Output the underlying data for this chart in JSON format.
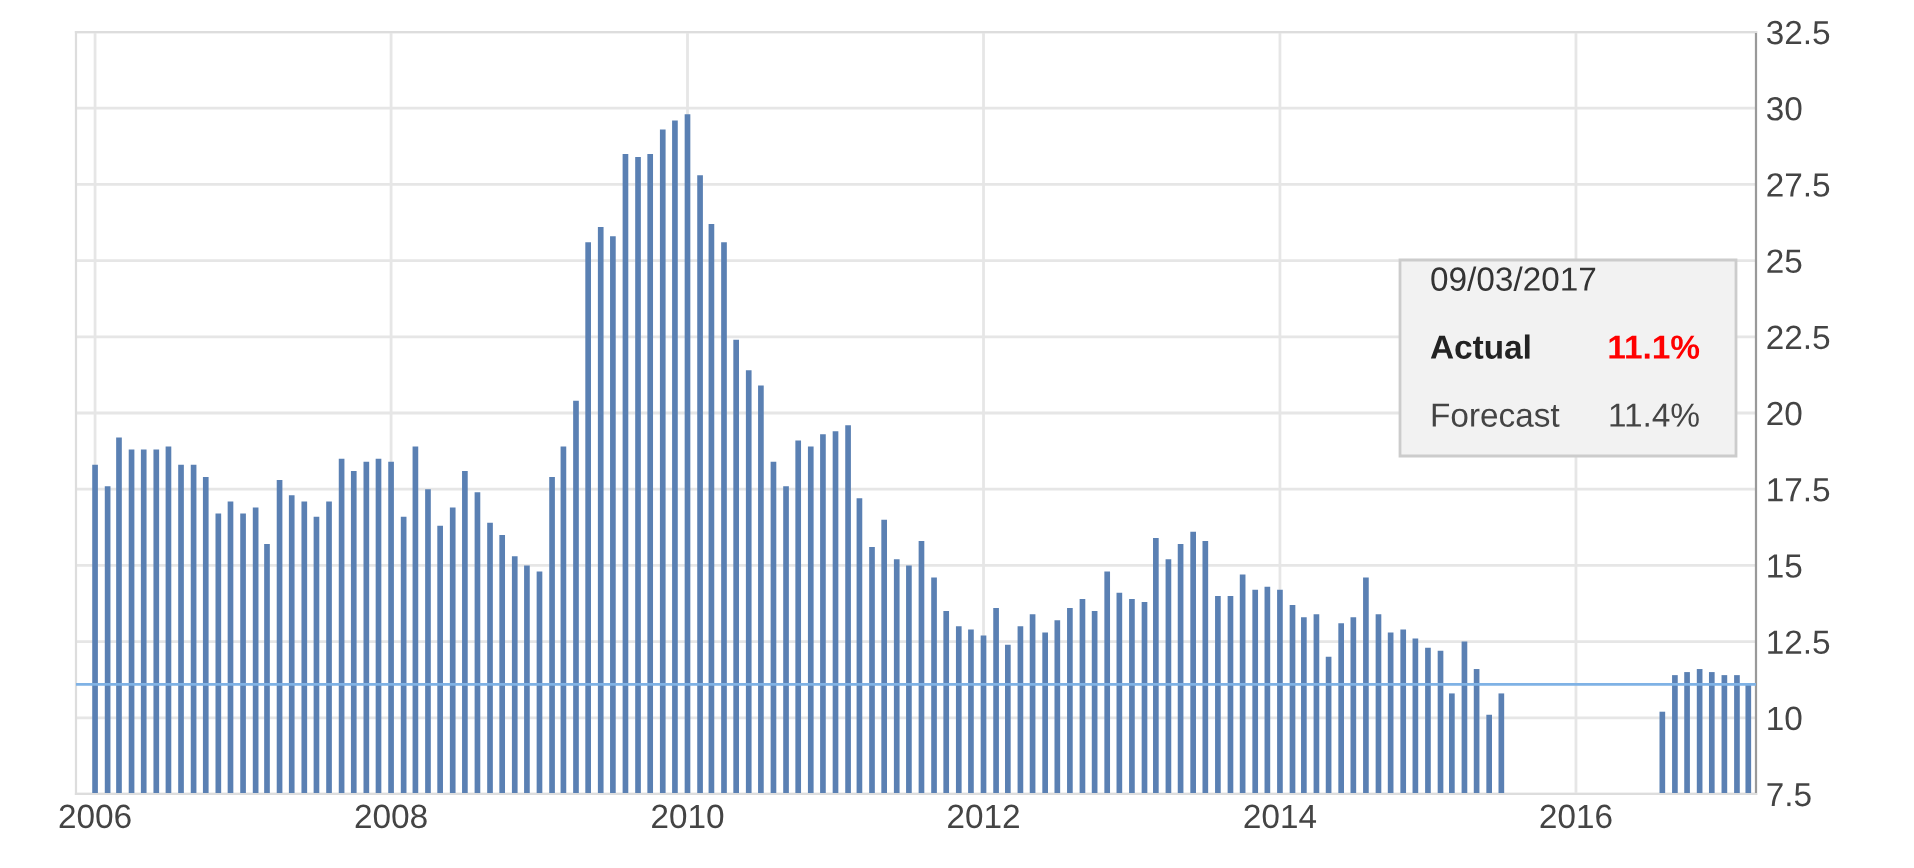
{
  "chart_data": {
    "type": "bar",
    "x": [
      "2006-01",
      "2006-02",
      "2006-03",
      "2006-04",
      "2006-05",
      "2006-06",
      "2006-07",
      "2006-08",
      "2006-09",
      "2006-10",
      "2006-11",
      "2006-12",
      "2007-01",
      "2007-02",
      "2007-03",
      "2007-04",
      "2007-05",
      "2007-06",
      "2007-07",
      "2007-08",
      "2007-09",
      "2007-10",
      "2007-11",
      "2007-12",
      "2008-01",
      "2008-02",
      "2008-03",
      "2008-04",
      "2008-05",
      "2008-06",
      "2008-07",
      "2008-08",
      "2008-09",
      "2008-10",
      "2008-11",
      "2008-12",
      "2009-01",
      "2009-02",
      "2009-03",
      "2009-04",
      "2009-05",
      "2009-06",
      "2009-07",
      "2009-08",
      "2009-09",
      "2009-10",
      "2009-11",
      "2009-12",
      "2010-01",
      "2010-02",
      "2010-03",
      "2010-04",
      "2010-05",
      "2010-06",
      "2010-07",
      "2010-08",
      "2010-09",
      "2010-10",
      "2010-11",
      "2010-12",
      "2011-01",
      "2011-02",
      "2011-03",
      "2011-04",
      "2011-05",
      "2011-06",
      "2011-07",
      "2011-08",
      "2011-09",
      "2011-10",
      "2011-11",
      "2011-12",
      "2012-01",
      "2012-02",
      "2012-03",
      "2012-04",
      "2012-05",
      "2012-06",
      "2012-07",
      "2012-08",
      "2012-09",
      "2012-10",
      "2012-11",
      "2012-12",
      "2013-01",
      "2013-02",
      "2013-03",
      "2013-04",
      "2013-05",
      "2013-06",
      "2013-07",
      "2013-08",
      "2013-09",
      "2013-10",
      "2013-11",
      "2013-12",
      "2014-01",
      "2014-02",
      "2014-03",
      "2014-04",
      "2014-05",
      "2014-06",
      "2014-07",
      "2014-08",
      "2014-09",
      "2014-10",
      "2014-11",
      "2014-12",
      "2015-01",
      "2015-02",
      "2015-03",
      "2015-04",
      "2015-05",
      "2015-06",
      "2015-07",
      "2015-08",
      "2015-09",
      "2015-10",
      "2015-11",
      "2015-12",
      "2016-01",
      "2016-02",
      "2016-03",
      "2016-04",
      "2016-05",
      "2016-06",
      "2016-07",
      "2016-08",
      "2016-09",
      "2016-10",
      "2016-11",
      "2016-12",
      "2017-01",
      "2017-02",
      "2017-03"
    ],
    "values": [
      18.3,
      17.6,
      19.2,
      18.8,
      18.8,
      18.8,
      18.9,
      18.3,
      18.3,
      17.9,
      16.7,
      17.1,
      16.7,
      16.9,
      15.7,
      17.8,
      17.3,
      17.1,
      16.6,
      17.1,
      18.5,
      18.1,
      18.4,
      18.5,
      18.4,
      16.6,
      18.9,
      17.5,
      16.3,
      16.9,
      18.1,
      17.4,
      16.4,
      16.0,
      15.3,
      15.0,
      14.8,
      17.9,
      18.9,
      20.4,
      25.6,
      26.1,
      25.8,
      28.5,
      28.4,
      28.5,
      29.3,
      29.6,
      29.8,
      27.8,
      26.2,
      25.6,
      22.4,
      21.4,
      20.9,
      18.4,
      17.6,
      19.1,
      18.9,
      19.3,
      19.4,
      19.6,
      17.2,
      15.6,
      16.5,
      15.2,
      15.0,
      15.8,
      14.6,
      13.5,
      13.0,
      12.9,
      12.7,
      13.6,
      12.4,
      13.0,
      13.4,
      12.8,
      13.2,
      13.6,
      13.9,
      13.5,
      14.8,
      14.1,
      13.9,
      13.8,
      15.9,
      15.2,
      15.7,
      16.1,
      15.8,
      14.0,
      14.0,
      14.7,
      14.2,
      14.3,
      14.2,
      13.7,
      13.3,
      13.4,
      12.0,
      13.1,
      13.3,
      14.6,
      13.4,
      12.8,
      12.9,
      12.6,
      12.3,
      12.2,
      10.8,
      12.5,
      11.6,
      10.1,
      10.8,
      null,
      null,
      null,
      null,
      null,
      null,
      null,
      null,
      null,
      null,
      null,
      null,
      10.2,
      11.4,
      11.5,
      11.6,
      11.5,
      11.4,
      11.4,
      11.1
    ],
    "color": "#5a80b3",
    "xlim": [
      "2005-11-15",
      "2017-03-20"
    ],
    "xticks": [
      {
        "value": "2006-01-01",
        "label": "2006"
      },
      {
        "value": "2008-01-01",
        "label": "2008"
      },
      {
        "value": "2010-01-01",
        "label": "2010"
      },
      {
        "value": "2012-01-01",
        "label": "2012"
      },
      {
        "value": "2014-01-01",
        "label": "2014"
      },
      {
        "value": "2016-01-01",
        "label": "2016"
      }
    ],
    "ylim": [
      7.5,
      32.5
    ],
    "yticks": [
      7.5,
      10,
      12.5,
      15,
      17.5,
      20,
      22.5,
      25,
      27.5,
      30,
      32.5
    ],
    "grid": true,
    "ref_lines": [
      {
        "axis": "y",
        "value": 11.1,
        "color": "#7fb2e5"
      }
    ],
    "annotations": [
      "09/03/2017",
      "Actual",
      "11.1%",
      "Forecast",
      "11.4%"
    ]
  }
}
